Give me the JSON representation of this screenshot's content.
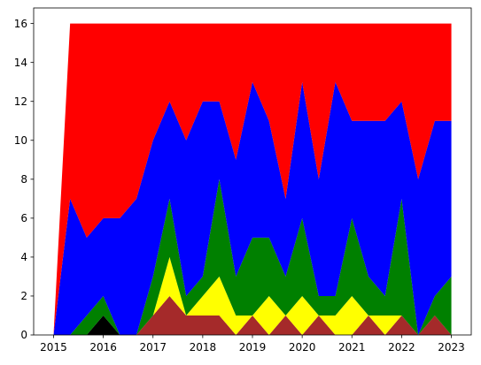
{
  "chart_data": {
    "type": "area",
    "stacked": true,
    "title": "",
    "xlabel": "",
    "ylabel": "",
    "x": [
      2015.0,
      2015.333,
      2015.667,
      2016.0,
      2016.333,
      2016.667,
      2017.0,
      2017.333,
      2017.667,
      2018.0,
      2018.333,
      2018.667,
      2019.0,
      2019.333,
      2019.667,
      2020.0,
      2020.333,
      2020.667,
      2021.0,
      2021.333,
      2021.667,
      2022.0,
      2022.333,
      2022.667,
      2023.0
    ],
    "xlim": [
      2014.6,
      2023.4
    ],
    "ylim": [
      0,
      16.8
    ],
    "xticks": [
      2015,
      2016,
      2017,
      2018,
      2019,
      2020,
      2021,
      2022,
      2023
    ],
    "yticks": [
      0,
      2,
      4,
      6,
      8,
      10,
      12,
      14,
      16
    ],
    "grid": false,
    "legend": false,
    "series": [
      {
        "color": "#000000",
        "values": [
          0,
          0,
          0,
          1,
          0,
          0,
          0,
          0,
          0,
          0,
          0,
          0,
          0,
          0,
          0,
          0,
          0,
          0,
          0,
          0,
          0,
          0,
          0,
          0,
          0
        ]
      },
      {
        "color": "#a52a2a",
        "values": [
          0,
          0,
          0,
          0,
          0,
          0,
          1,
          2,
          1,
          1,
          1,
          0,
          1,
          0,
          1,
          0,
          1,
          0,
          0,
          1,
          0,
          1,
          0,
          1,
          0
        ]
      },
      {
        "color": "#ffff00",
        "values": [
          0,
          0,
          0,
          0,
          0,
          0,
          0,
          2,
          0,
          1,
          2,
          1,
          0,
          2,
          0,
          2,
          0,
          1,
          2,
          0,
          1,
          0,
          0,
          0,
          0
        ]
      },
      {
        "color": "#008000",
        "values": [
          0,
          0,
          1,
          1,
          0,
          0,
          2,
          3,
          1,
          1,
          5,
          2,
          4,
          3,
          2,
          4,
          1,
          1,
          4,
          2,
          1,
          6,
          0,
          1,
          3
        ]
      },
      {
        "color": "#0000ff",
        "values": [
          0,
          7,
          4,
          4,
          6,
          7,
          7,
          5,
          8,
          9,
          4,
          6,
          8,
          6,
          4,
          7,
          6,
          11,
          5,
          8,
          9,
          5,
          8,
          9,
          8
        ]
      },
      {
        "color": "#ff0000",
        "values": [
          0,
          9,
          11,
          10,
          10,
          9,
          6,
          4,
          6,
          4,
          4,
          7,
          3,
          5,
          9,
          3,
          8,
          3,
          5,
          5,
          5,
          4,
          8,
          5,
          5
        ]
      }
    ]
  }
}
